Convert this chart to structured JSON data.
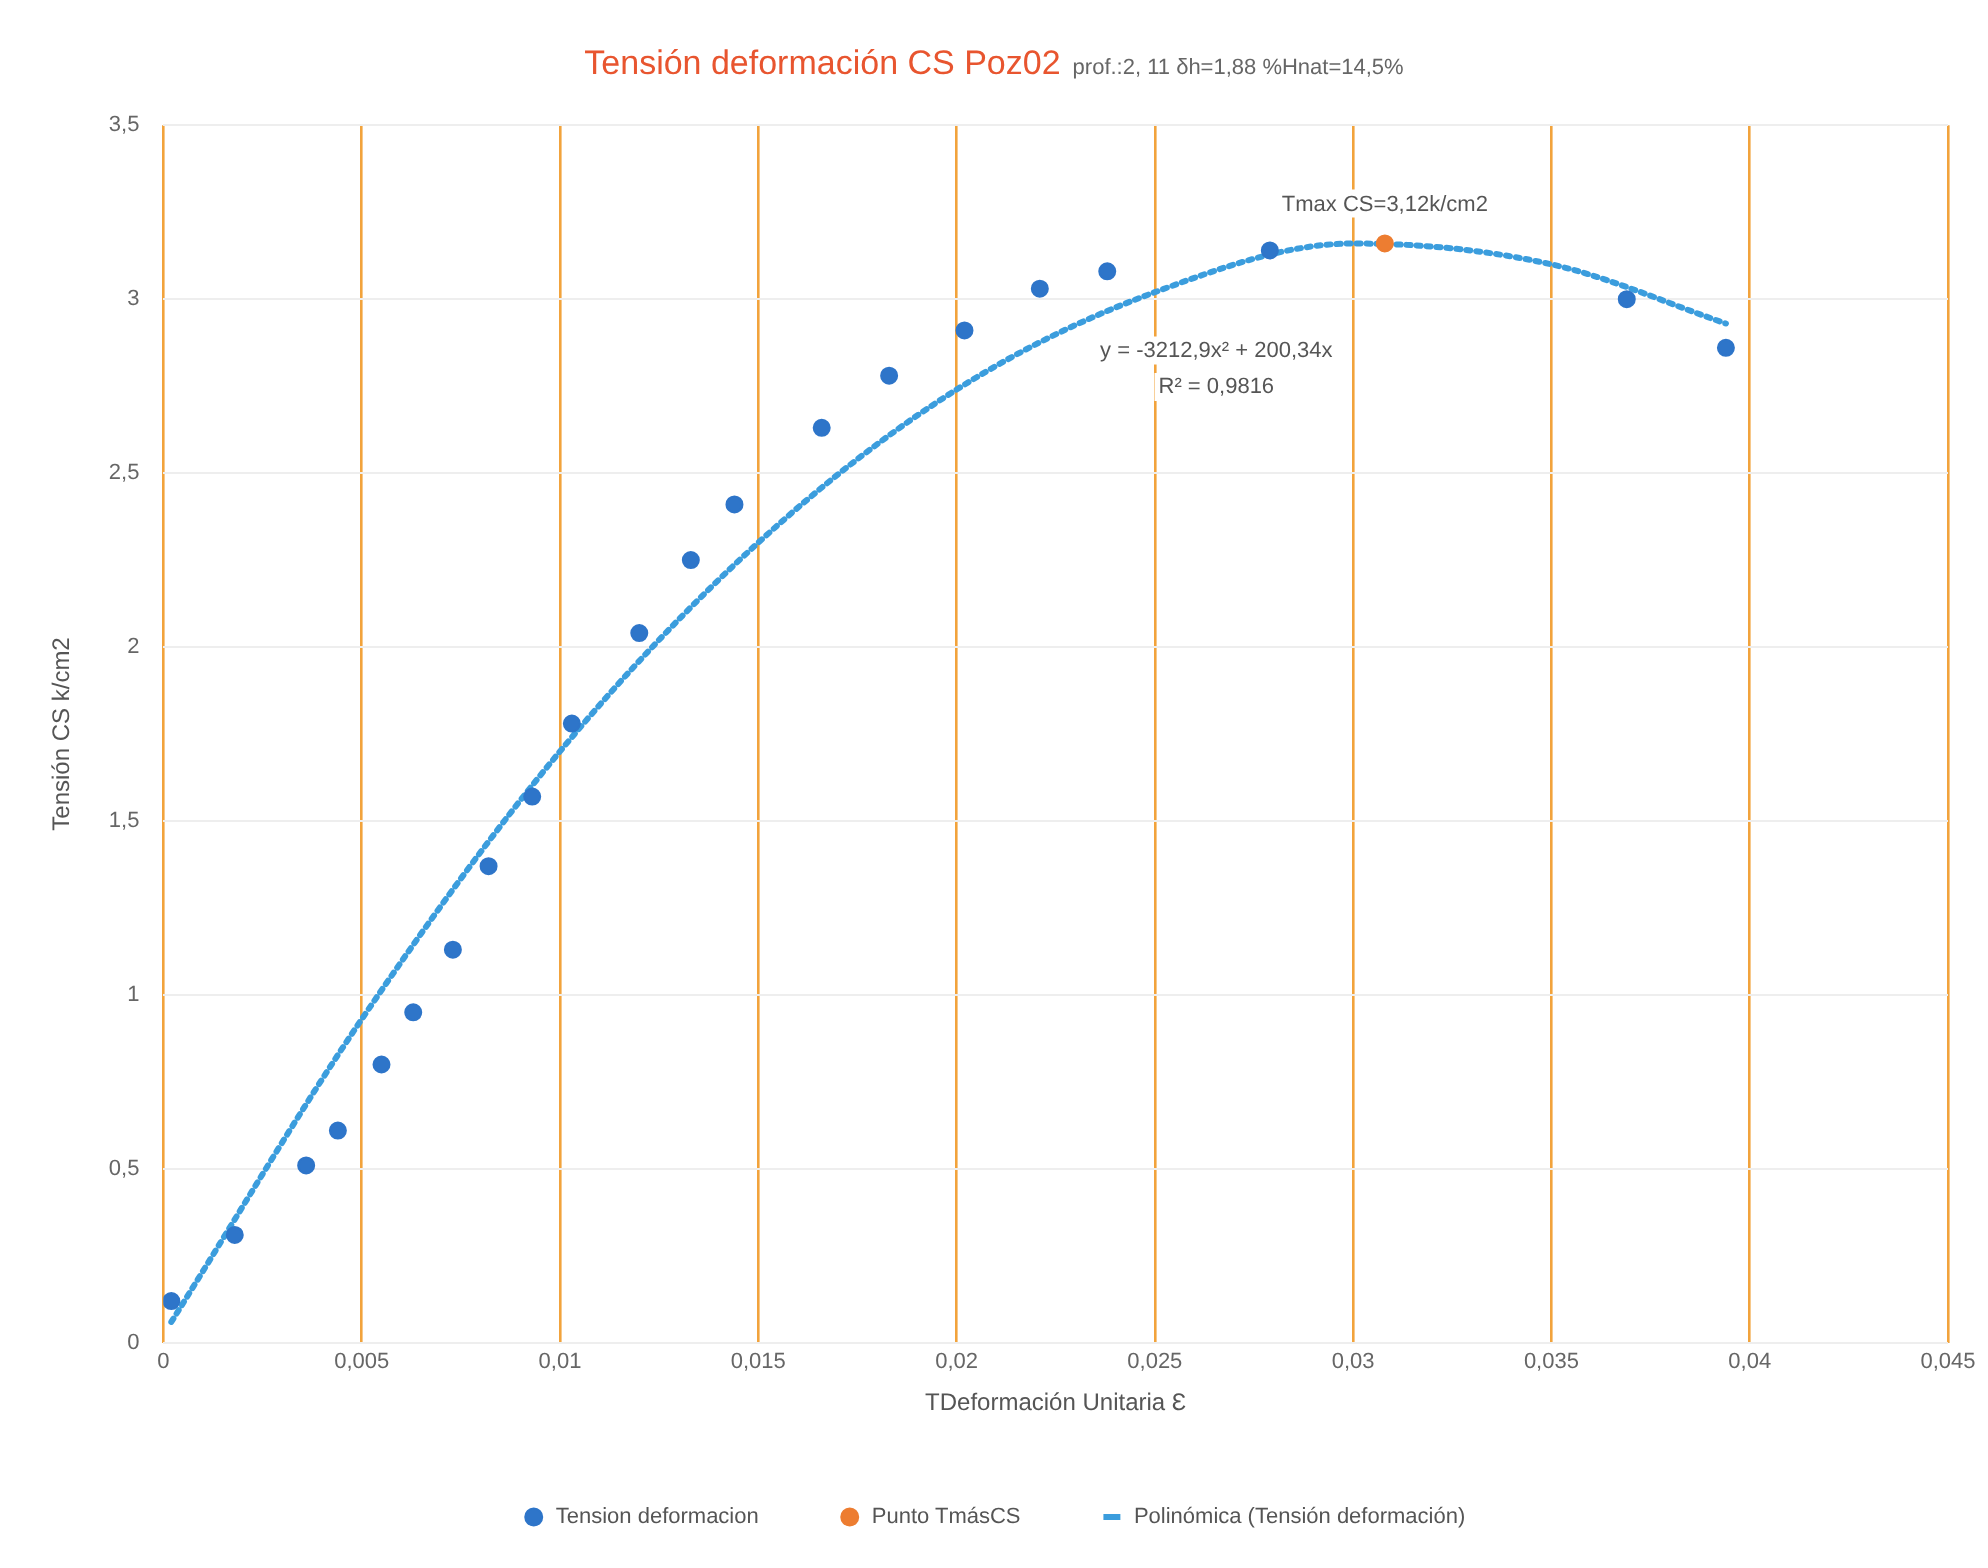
{
  "chart_data": {
    "type": "scatter",
    "title": "Tensión deformación CS Poz02",
    "subtitle": "prof.:2, 11 δh=1,88 %Hnat=14,5%",
    "xlabel": "TDeformación Unitaria Ɛ",
    "ylabel": "Tensión CS k/cm2",
    "xlim": [
      0,
      0.045
    ],
    "xticks": [
      0,
      {
        "value": 0.005,
        "label": "0,005"
      },
      {
        "value": 0.01,
        "label": "0,01"
      },
      {
        "value": 0.015,
        "label": "0,015"
      },
      {
        "value": 0.02,
        "label": "0,02"
      },
      {
        "value": 0.025,
        "label": "0,025"
      },
      {
        "value": 0.03,
        "label": "0,03"
      },
      {
        "value": 0.035,
        "label": "0,035"
      },
      {
        "value": 0.04,
        "label": "0,04"
      },
      {
        "value": 0.045,
        "label": "0,045"
      }
    ],
    "ylim": [
      0,
      3.5
    ],
    "yticks": [
      0,
      {
        "value": 0.5,
        "label": "0,5"
      },
      1,
      {
        "value": 1.5,
        "label": "1,5"
      },
      2,
      {
        "value": 2.5,
        "label": "2,5"
      },
      3,
      {
        "value": 3.5,
        "label": "3,5"
      }
    ],
    "grid": true,
    "legend": "bottom",
    "series": [
      {
        "name": "Tension deformacion",
        "marker": "circle",
        "color": "#2e75c9",
        "x": [
          0.0002,
          0.0018,
          0.0036,
          0.0044,
          0.0055,
          0.0063,
          0.0073,
          0.0082,
          0.0093,
          0.0103,
          0.012,
          0.0133,
          0.0144,
          0.0166,
          0.0183,
          0.0202,
          0.0221,
          0.0238,
          0.0279,
          0.0369,
          0.0394
        ],
        "values": [
          0.12,
          0.31,
          0.51,
          0.61,
          0.8,
          0.95,
          1.13,
          1.37,
          1.57,
          1.78,
          2.04,
          2.25,
          2.41,
          2.63,
          2.78,
          2.91,
          3.03,
          3.08,
          3.14,
          3.0,
          2.86
        ]
      },
      {
        "name": "Punto TmásCS",
        "marker": "circle",
        "color": "#ed7d31",
        "x": [
          0.0308
        ],
        "values": [
          3.16
        ]
      },
      {
        "name": "Polinómica (Tensión deformación)",
        "type": "line",
        "marker": "none",
        "line_style": "dotted",
        "color": "#3b9ddd",
        "x": [
          0.0002,
          0.005,
          0.01,
          0.015,
          0.02,
          0.025,
          0.03,
          0.035,
          0.0394
        ],
        "values": [
          0.06,
          0.93,
          1.7,
          2.3,
          2.74,
          3.02,
          3.16,
          3.1,
          2.93
        ]
      }
    ],
    "annotations": [
      {
        "text": "Tmax CS=3,12k/cm2",
        "x": 0.0308,
        "y": 3.16
      },
      "y = -3212,9x² + 200,34x",
      "R² = 0,9816"
    ]
  }
}
